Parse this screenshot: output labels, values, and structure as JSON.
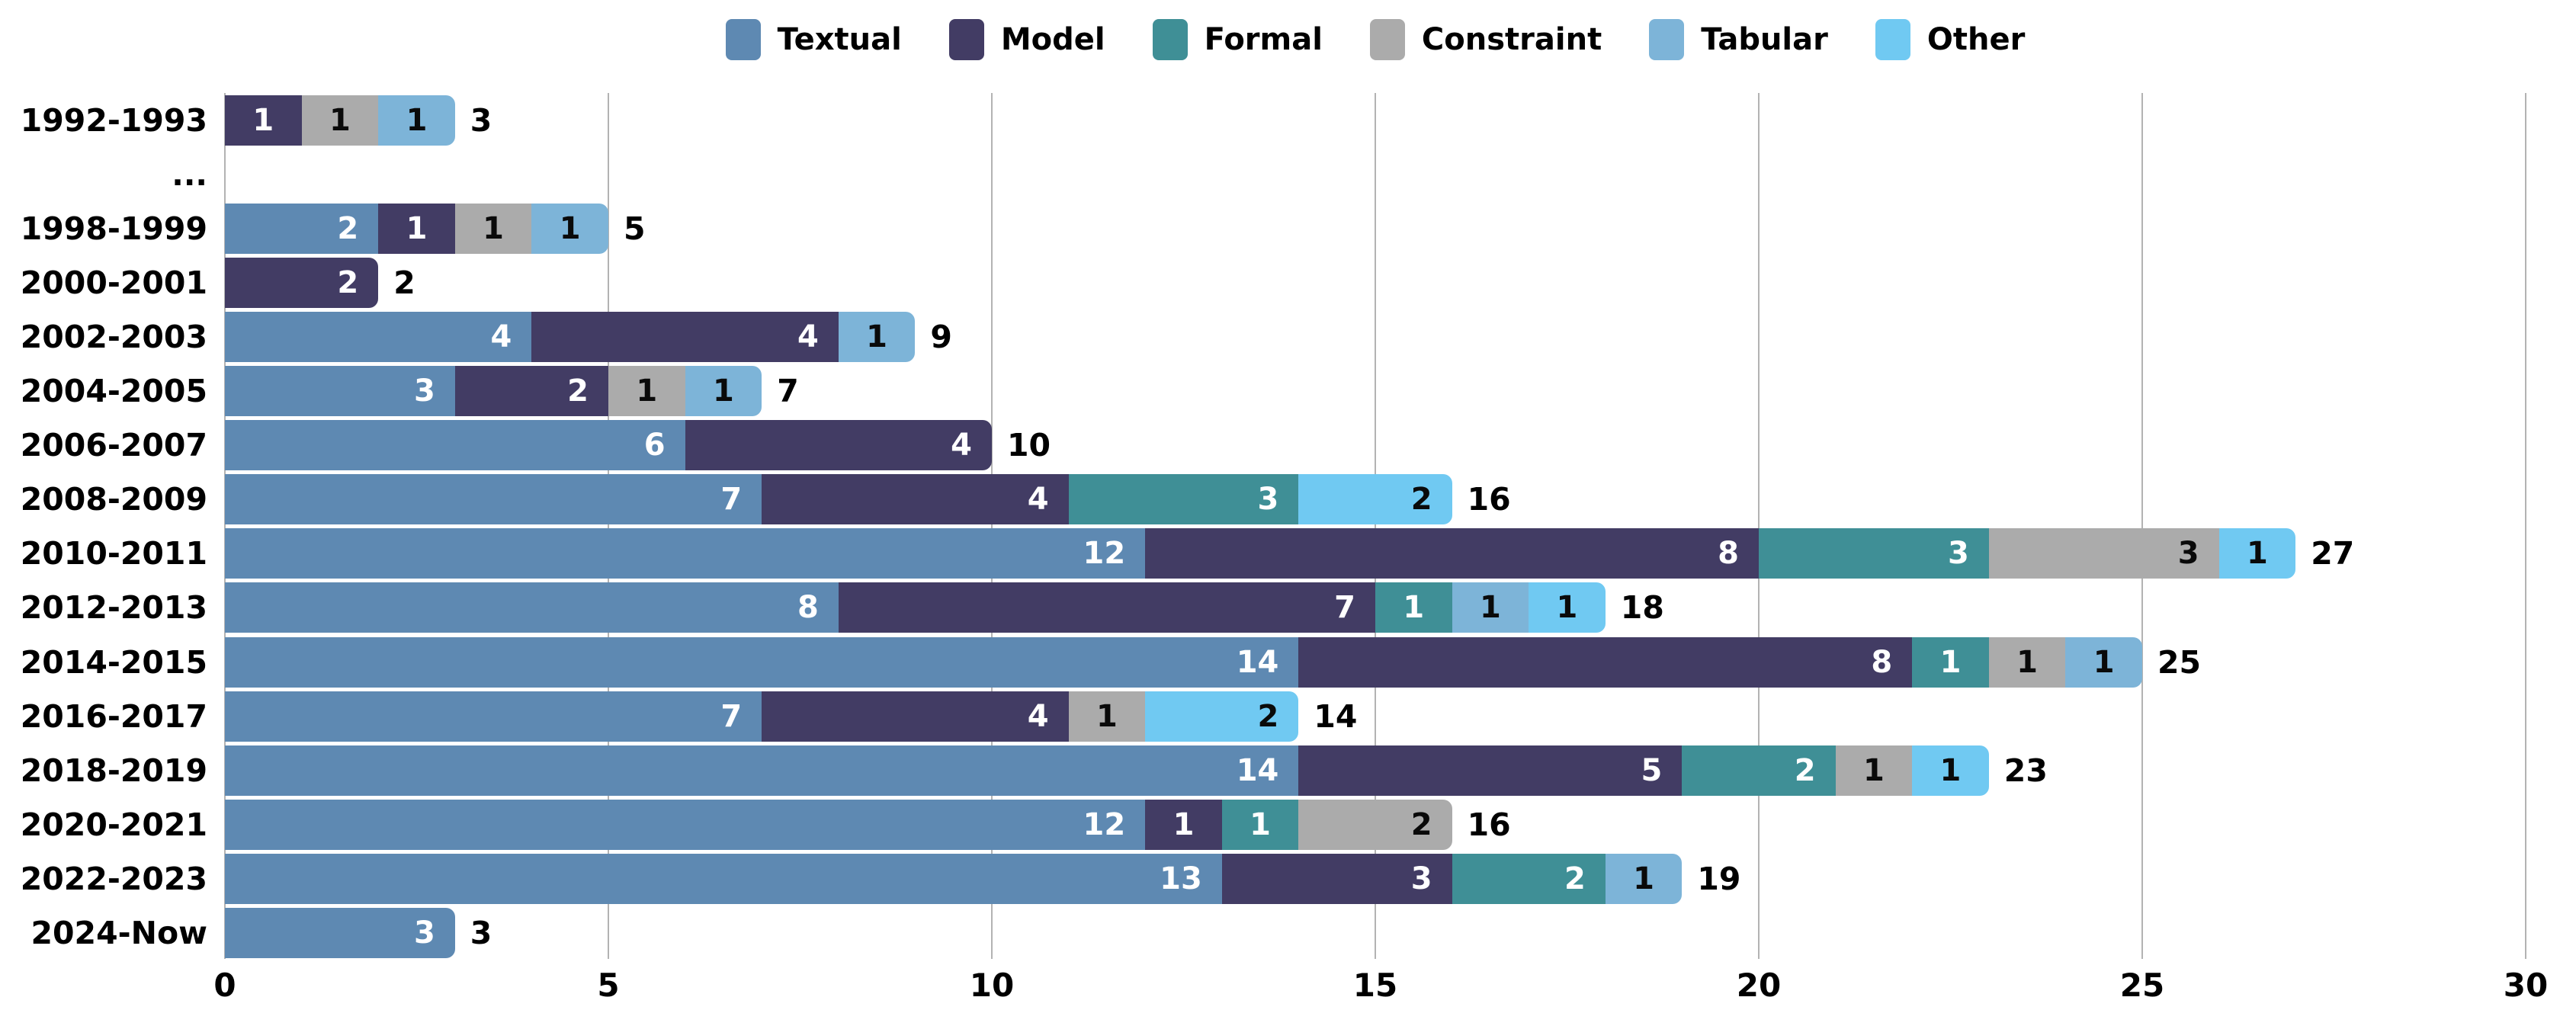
{
  "chart_data": {
    "type": "bar",
    "orientation": "horizontal",
    "stacked": true,
    "title": "",
    "xlabel": "",
    "ylabel": "",
    "categories": [
      "1992-1993",
      "...",
      "1998-1999",
      "2000-2001",
      "2002-2003",
      "2004-2005",
      "2006-2007",
      "2008-2009",
      "2010-2011",
      "2012-2013",
      "2014-2015",
      "2016-2017",
      "2018-2019",
      "2020-2021",
      "2022-2023",
      "2024-Now"
    ],
    "series": [
      {
        "name": "Textual",
        "color": "#5E89B2",
        "label_color": "#ffffff",
        "values": [
          0,
          0,
          2,
          0,
          4,
          3,
          6,
          7,
          12,
          8,
          14,
          7,
          14,
          12,
          13,
          3
        ]
      },
      {
        "name": "Model",
        "color": "#423C64",
        "label_color": "#ffffff",
        "values": [
          1,
          0,
          1,
          2,
          4,
          2,
          4,
          4,
          8,
          7,
          8,
          4,
          5,
          1,
          3,
          0
        ]
      },
      {
        "name": "Formal",
        "color": "#3F8F96",
        "label_color": "#ffffff",
        "values": [
          0,
          0,
          0,
          0,
          0,
          0,
          0,
          3,
          3,
          1,
          1,
          0,
          2,
          1,
          2,
          0
        ]
      },
      {
        "name": "Constraint",
        "color": "#ABABAB",
        "label_color": "#0a0a0a",
        "values": [
          1,
          0,
          1,
          0,
          0,
          1,
          0,
          0,
          3,
          0,
          1,
          1,
          1,
          2,
          0,
          0
        ]
      },
      {
        "name": "Tabular",
        "color": "#7DB4D8",
        "label_color": "#0a0a0a",
        "values": [
          1,
          0,
          1,
          0,
          1,
          1,
          0,
          0,
          0,
          1,
          1,
          0,
          0,
          0,
          1,
          0
        ]
      },
      {
        "name": "Other",
        "color": "#70C9F2",
        "label_color": "#0a0a0a",
        "values": [
          0,
          0,
          0,
          0,
          0,
          0,
          0,
          2,
          1,
          1,
          0,
          2,
          1,
          0,
          0,
          0
        ]
      }
    ],
    "totals": [
      3,
      null,
      5,
      2,
      9,
      7,
      10,
      16,
      27,
      18,
      25,
      14,
      23,
      16,
      19,
      3
    ],
    "xlim": [
      0,
      30
    ],
    "xticks": [
      0,
      5,
      10,
      15,
      20,
      25,
      30
    ],
    "legend_position": "top",
    "grid": true,
    "gridline_color": "#b3b3b3",
    "background": "#ffffff"
  }
}
